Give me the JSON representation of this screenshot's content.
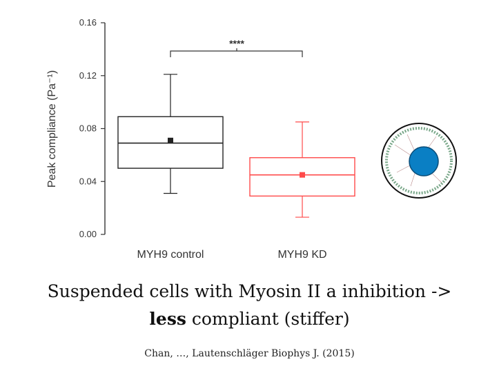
{
  "chart_data": {
    "type": "box",
    "ylabel": "Peak compliance (Pa⁻¹)",
    "ylim": [
      0,
      0.16
    ],
    "yticks": [
      "0.00",
      "0.04",
      "0.08",
      "0.12",
      "0.16"
    ],
    "ytick_values": [
      0,
      0.04,
      0.08,
      0.12,
      0.16
    ],
    "categories": [
      "MYH9 control",
      "MYH9 KD"
    ],
    "boxes": [
      {
        "category": "MYH9 control",
        "whisker_low": 0.031,
        "q1": 0.05,
        "median": 0.069,
        "q3": 0.089,
        "whisker_high": 0.121,
        "mean": 0.071,
        "color": "#222222"
      },
      {
        "category": "MYH9 KD",
        "whisker_low": 0.013,
        "q1": 0.029,
        "median": 0.045,
        "q3": 0.058,
        "whisker_high": 0.085,
        "mean": 0.045,
        "color": "#ff4a4a"
      }
    ],
    "significance": "****"
  },
  "caption": {
    "line1": "Suspended cells with Myosin II a inhibition ->",
    "line2_bold": "less",
    "line2_rest": " compliant (stiffer)"
  },
  "citation": "Chan, …, Lautenschläger Biophys J. (2015)",
  "colors": {
    "nucleus": "#0a7fc4",
    "cell_outline": "#111111",
    "cortex": "#7aa88a"
  }
}
